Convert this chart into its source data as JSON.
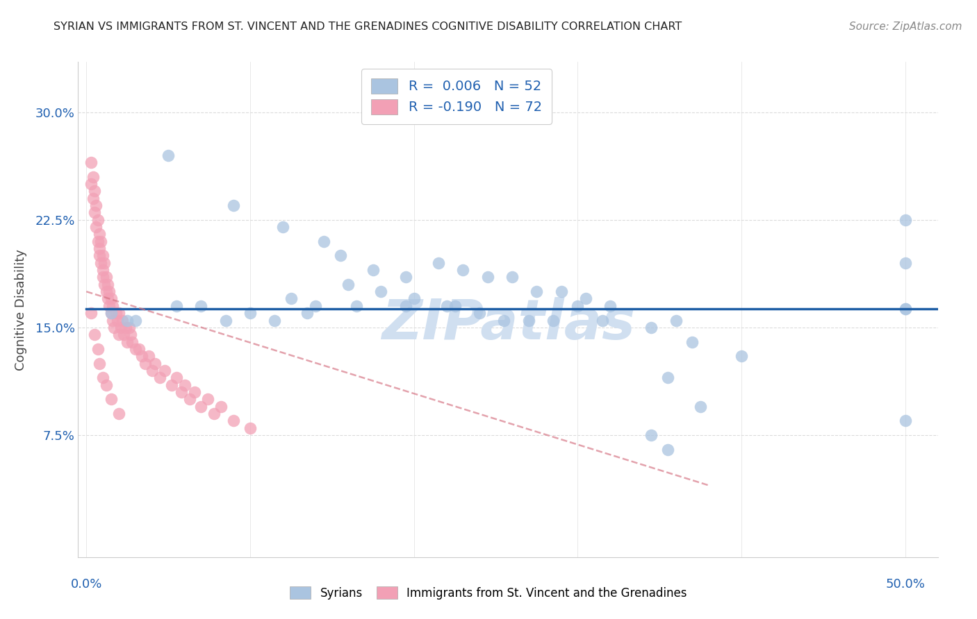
{
  "title": "SYRIAN VS IMMIGRANTS FROM ST. VINCENT AND THE GRENADINES COGNITIVE DISABILITY CORRELATION CHART",
  "source": "Source: ZipAtlas.com",
  "ylabel": "Cognitive Disability",
  "y_ticks": [
    "7.5%",
    "15.0%",
    "22.5%",
    "30.0%"
  ],
  "y_tick_vals": [
    0.075,
    0.15,
    0.225,
    0.3
  ],
  "ylim": [
    -0.01,
    0.335
  ],
  "xlim": [
    -0.005,
    0.52
  ],
  "legend_blue_label": "R =  0.006   N = 52",
  "legend_pink_label": "R = -0.190   N = 72",
  "blue_scatter_color": "#aac4e0",
  "pink_scatter_color": "#f2a0b5",
  "trendline_blue_color": "#1f5fa6",
  "trendline_pink_color": "#d47080",
  "legend_text_color": "#2060b0",
  "axis_text_color": "#2060b0",
  "watermark_text": "ZIPatlas",
  "watermark_color": "#d0dff0",
  "grid_color": "#cccccc",
  "blue_trendline_y": 0.163,
  "pink_trendline_start_x": 0.0,
  "pink_trendline_start_y": 0.175,
  "pink_trendline_end_x": 0.38,
  "pink_trendline_end_y": 0.04,
  "syrians_x": [
    0.05,
    0.09,
    0.12,
    0.145,
    0.155,
    0.175,
    0.195,
    0.215,
    0.23,
    0.245,
    0.26,
    0.275,
    0.29,
    0.305,
    0.32,
    0.015,
    0.03,
    0.07,
    0.1,
    0.125,
    0.14,
    0.16,
    0.18,
    0.2,
    0.22,
    0.24,
    0.27,
    0.3,
    0.025,
    0.055,
    0.085,
    0.115,
    0.135,
    0.165,
    0.195,
    0.225,
    0.255,
    0.285,
    0.315,
    0.345,
    0.37,
    0.4,
    0.36,
    0.355,
    0.375,
    0.345,
    0.355,
    0.5,
    0.5,
    0.5,
    0.5,
    0.5
  ],
  "syrians_y": [
    0.27,
    0.235,
    0.22,
    0.21,
    0.2,
    0.19,
    0.185,
    0.195,
    0.19,
    0.185,
    0.185,
    0.175,
    0.175,
    0.17,
    0.165,
    0.16,
    0.155,
    0.165,
    0.16,
    0.17,
    0.165,
    0.18,
    0.175,
    0.17,
    0.165,
    0.16,
    0.155,
    0.165,
    0.155,
    0.165,
    0.155,
    0.155,
    0.16,
    0.165,
    0.165,
    0.165,
    0.155,
    0.155,
    0.155,
    0.15,
    0.14,
    0.13,
    0.155,
    0.115,
    0.095,
    0.075,
    0.065,
    0.225,
    0.195,
    0.085,
    0.163,
    0.163
  ],
  "stv_x": [
    0.003,
    0.003,
    0.004,
    0.004,
    0.005,
    0.005,
    0.006,
    0.006,
    0.007,
    0.007,
    0.008,
    0.008,
    0.008,
    0.009,
    0.009,
    0.01,
    0.01,
    0.01,
    0.011,
    0.011,
    0.012,
    0.012,
    0.013,
    0.013,
    0.014,
    0.014,
    0.015,
    0.015,
    0.016,
    0.016,
    0.017,
    0.018,
    0.019,
    0.02,
    0.02,
    0.021,
    0.022,
    0.023,
    0.024,
    0.025,
    0.026,
    0.027,
    0.028,
    0.03,
    0.032,
    0.034,
    0.036,
    0.038,
    0.04,
    0.042,
    0.045,
    0.048,
    0.052,
    0.055,
    0.058,
    0.06,
    0.063,
    0.066,
    0.07,
    0.074,
    0.078,
    0.082,
    0.09,
    0.1,
    0.003,
    0.005,
    0.007,
    0.008,
    0.01,
    0.012,
    0.015,
    0.02
  ],
  "stv_y": [
    0.265,
    0.25,
    0.24,
    0.255,
    0.23,
    0.245,
    0.22,
    0.235,
    0.21,
    0.225,
    0.2,
    0.215,
    0.205,
    0.195,
    0.21,
    0.185,
    0.2,
    0.19,
    0.18,
    0.195,
    0.175,
    0.185,
    0.17,
    0.18,
    0.165,
    0.175,
    0.16,
    0.17,
    0.155,
    0.165,
    0.15,
    0.16,
    0.155,
    0.145,
    0.16,
    0.15,
    0.155,
    0.145,
    0.15,
    0.14,
    0.15,
    0.145,
    0.14,
    0.135,
    0.135,
    0.13,
    0.125,
    0.13,
    0.12,
    0.125,
    0.115,
    0.12,
    0.11,
    0.115,
    0.105,
    0.11,
    0.1,
    0.105,
    0.095,
    0.1,
    0.09,
    0.095,
    0.085,
    0.08,
    0.16,
    0.145,
    0.135,
    0.125,
    0.115,
    0.11,
    0.1,
    0.09
  ]
}
